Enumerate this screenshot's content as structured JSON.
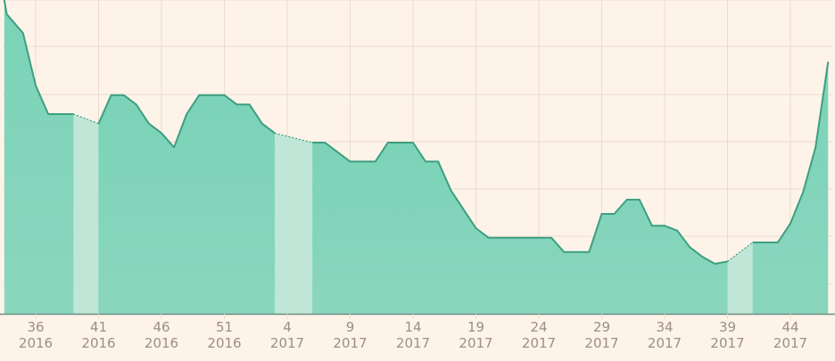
{
  "colors": {
    "background": "#fdf3e9",
    "grid": "#eadbd0",
    "area_fill": "#7bd3b8",
    "area_fill_bottom": "#8ad6bd",
    "gap_fill": "#bfe6d6",
    "line": "#3c9f80",
    "axis": "#6c8f84",
    "tick_text": "#9c8f86"
  },
  "chart_data": {
    "type": "area",
    "x_unit": "ISO week",
    "x_ticks": [
      {
        "week": 36,
        "year": 2016,
        "label_week": "36",
        "label_year": "2016"
      },
      {
        "week": 41,
        "year": 2016,
        "label_week": "41",
        "label_year": "2016"
      },
      {
        "week": 46,
        "year": 2016,
        "label_week": "46",
        "label_year": "2016"
      },
      {
        "week": 51,
        "year": 2016,
        "label_week": "51",
        "label_year": "2016"
      },
      {
        "week": 4,
        "year": 2017,
        "label_week": "4",
        "label_year": "2017"
      },
      {
        "week": 9,
        "year": 2017,
        "label_week": "9",
        "label_year": "2017"
      },
      {
        "week": 14,
        "year": 2017,
        "label_week": "14",
        "label_year": "2017"
      },
      {
        "week": 19,
        "year": 2017,
        "label_week": "19",
        "label_year": "2017"
      },
      {
        "week": 24,
        "year": 2017,
        "label_week": "24",
        "label_year": "2017"
      },
      {
        "week": 29,
        "year": 2017,
        "label_week": "29",
        "label_year": "2017"
      },
      {
        "week": 34,
        "year": 2017,
        "label_week": "34",
        "label_year": "2017"
      },
      {
        "week": 39,
        "year": 2017,
        "label_week": "39",
        "label_year": "2017"
      },
      {
        "week": 44,
        "year": 2017,
        "label_week": "44",
        "label_year": "2017"
      }
    ],
    "ylim": [
      0,
      6.6
    ],
    "grid": true,
    "y_labels_visible": false,
    "series": [
      {
        "points": [
          {
            "x": 33.5,
            "y": 6.6
          },
          {
            "x": 33.7,
            "y": 6.3
          },
          {
            "x": 35.0,
            "y": 5.9
          },
          {
            "x": 36.0,
            "y": 4.8
          },
          {
            "x": 37.0,
            "y": 4.2
          },
          {
            "x": 38.0,
            "y": 4.2
          },
          {
            "x": 39.0,
            "y": 4.2
          },
          {
            "x": 39.01,
            "y": 4.2,
            "gap_start": true
          },
          {
            "x": 40.99,
            "y": 4.0,
            "gap_end": true
          },
          {
            "x": 41.0,
            "y": 4.0
          },
          {
            "x": 42.0,
            "y": 4.6
          },
          {
            "x": 43.0,
            "y": 4.6
          },
          {
            "x": 44.0,
            "y": 4.4
          },
          {
            "x": 45.0,
            "y": 4.0
          },
          {
            "x": 46.0,
            "y": 3.8
          },
          {
            "x": 47.0,
            "y": 3.5
          },
          {
            "x": 48.0,
            "y": 4.2
          },
          {
            "x": 49.0,
            "y": 4.6
          },
          {
            "x": 50.0,
            "y": 4.6
          },
          {
            "x": 51.0,
            "y": 4.6
          },
          {
            "x": 52.0,
            "y": 4.4
          },
          {
            "x": 53.0,
            "y": 4.4
          },
          {
            "x": 54.0,
            "y": 4.0
          },
          {
            "x": 55.0,
            "y": 3.8
          },
          {
            "x": 55.01,
            "y": 3.8,
            "gap_start": true
          },
          {
            "x": 57.99,
            "y": 3.6,
            "gap_end": true
          },
          {
            "x": 58.0,
            "y": 3.6
          },
          {
            "x": 59.0,
            "y": 3.6
          },
          {
            "x": 60.0,
            "y": 3.4
          },
          {
            "x": 61.0,
            "y": 3.2
          },
          {
            "x": 62.0,
            "y": 3.2
          },
          {
            "x": 63.0,
            "y": 3.2
          },
          {
            "x": 64.0,
            "y": 3.6
          },
          {
            "x": 65.0,
            "y": 3.6
          },
          {
            "x": 66.0,
            "y": 3.6
          },
          {
            "x": 67.0,
            "y": 3.2
          },
          {
            "x": 68.0,
            "y": 3.2
          },
          {
            "x": 69.0,
            "y": 2.6
          },
          {
            "x": 70.0,
            "y": 2.2
          },
          {
            "x": 71.0,
            "y": 1.8
          },
          {
            "x": 72.0,
            "y": 1.6
          },
          {
            "x": 73.0,
            "y": 1.6
          },
          {
            "x": 74.0,
            "y": 1.6
          },
          {
            "x": 75.0,
            "y": 1.6
          },
          {
            "x": 76.0,
            "y": 1.6
          },
          {
            "x": 77.0,
            "y": 1.6
          },
          {
            "x": 78.0,
            "y": 1.3
          },
          {
            "x": 79.0,
            "y": 1.3
          },
          {
            "x": 80.0,
            "y": 1.3
          },
          {
            "x": 81.0,
            "y": 2.1
          },
          {
            "x": 82.0,
            "y": 2.1
          },
          {
            "x": 83.0,
            "y": 2.4
          },
          {
            "x": 84.0,
            "y": 2.4
          },
          {
            "x": 85.0,
            "y": 1.85
          },
          {
            "x": 86.0,
            "y": 1.85
          },
          {
            "x": 87.0,
            "y": 1.75
          },
          {
            "x": 88.0,
            "y": 1.4
          },
          {
            "x": 89.0,
            "y": 1.2
          },
          {
            "x": 90.0,
            "y": 1.05
          },
          {
            "x": 91.0,
            "y": 1.1
          },
          {
            "x": 91.01,
            "y": 1.1,
            "gap_start": true
          },
          {
            "x": 92.99,
            "y": 1.5,
            "gap_end": true
          },
          {
            "x": 93.0,
            "y": 1.5
          },
          {
            "x": 94.0,
            "y": 1.5
          },
          {
            "x": 95.0,
            "y": 1.5
          },
          {
            "x": 96.0,
            "y": 1.9
          },
          {
            "x": 97.0,
            "y": 2.55
          },
          {
            "x": 98.0,
            "y": 3.5
          },
          {
            "x": 99.0,
            "y": 5.3
          }
        ],
        "gaps": [
          [
            39.0,
            41.0
          ],
          [
            55.0,
            58.0
          ],
          [
            91.0,
            93.0
          ]
        ]
      }
    ]
  }
}
